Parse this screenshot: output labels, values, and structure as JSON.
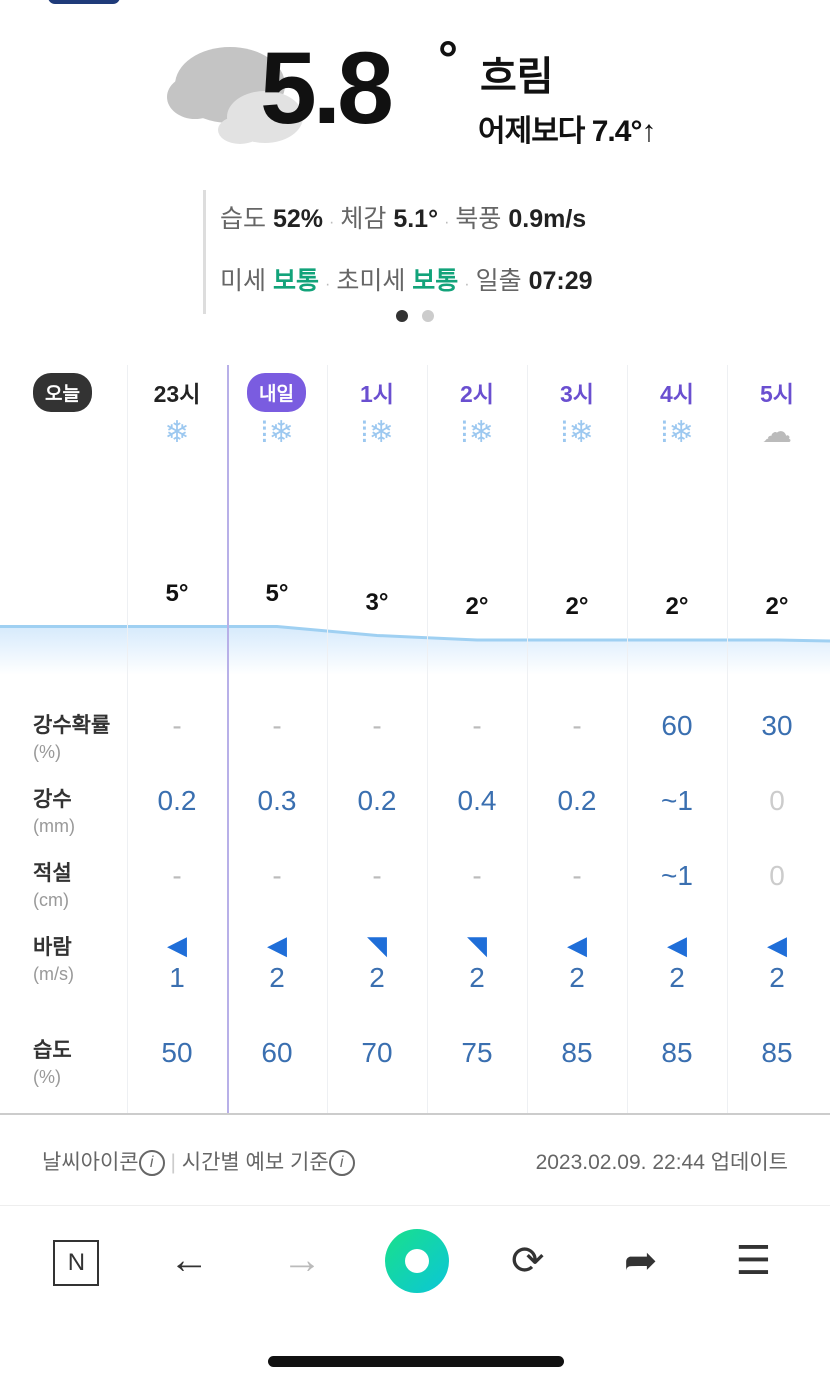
{
  "current": {
    "temp": "5.8",
    "deg": "°",
    "condition": "흐림",
    "compare": "어제보다 7.4°↑"
  },
  "details": {
    "humidity_label": "습도",
    "humidity": "52%",
    "feels_label": "체감",
    "feels": "5.1°",
    "wind_label": "북풍",
    "wind": "0.9m/s",
    "pm10_label": "미세",
    "pm10": "보통",
    "pm25_label": "초미세",
    "pm25": "보통",
    "sunrise_label": "일출",
    "sunrise": "07:29"
  },
  "colors": {
    "accent": "#6a4fd0",
    "good": "#12a37a",
    "value": "#3a6fb0"
  },
  "labels": {
    "today": "오늘",
    "tomorrow": "내일",
    "pop": "강수확률",
    "pop_unit": "(%)",
    "rain": "강수",
    "rain_unit": "(mm)",
    "snow": "적설",
    "snow_unit": "(cm)",
    "wind": "바람",
    "wind_unit": "(m/s)",
    "hum": "습도",
    "hum_unit": "(%)"
  },
  "hours": [
    {
      "time": "23시",
      "icon": "snow",
      "temp": "5°",
      "t": 5,
      "pop": "-",
      "rain": "0.2",
      "snow": "-",
      "wind_dir": "west",
      "wind": "1",
      "hum": "50"
    },
    {
      "time": "",
      "icon": "snow-rain",
      "temp": "5°",
      "t": 5,
      "pop": "-",
      "rain": "0.3",
      "snow": "-",
      "wind_dir": "west",
      "wind": "2",
      "hum": "60"
    },
    {
      "time": "1시",
      "icon": "snow-rain",
      "temp": "3°",
      "t": 3,
      "pop": "-",
      "rain": "0.2",
      "snow": "-",
      "wind_dir": "south-east",
      "wind": "2",
      "hum": "70"
    },
    {
      "time": "2시",
      "icon": "snow-rain",
      "temp": "2°",
      "t": 2,
      "pop": "-",
      "rain": "0.4",
      "snow": "-",
      "wind_dir": "south-east",
      "wind": "2",
      "hum": "75"
    },
    {
      "time": "3시",
      "icon": "snow-rain",
      "temp": "2°",
      "t": 2,
      "pop": "-",
      "rain": "0.2",
      "snow": "-",
      "wind_dir": "west",
      "wind": "2",
      "hum": "85"
    },
    {
      "time": "4시",
      "icon": "snow-rain",
      "temp": "2°",
      "t": 2,
      "pop": "60",
      "rain": "~1",
      "snow": "~1",
      "wind_dir": "west",
      "wind": "2",
      "hum": "85"
    },
    {
      "time": "5시",
      "icon": "cloudy",
      "temp": "2°",
      "t": 2,
      "pop": "30",
      "rain": "0",
      "snow": "0",
      "wind_dir": "west",
      "wind": "2",
      "hum": "85"
    }
  ],
  "footer": {
    "icon_info": "날씨아이콘",
    "sep": "|",
    "basis": "시간별 예보 기준",
    "updated": "2023.02.09. 22:44 업데이트"
  }
}
